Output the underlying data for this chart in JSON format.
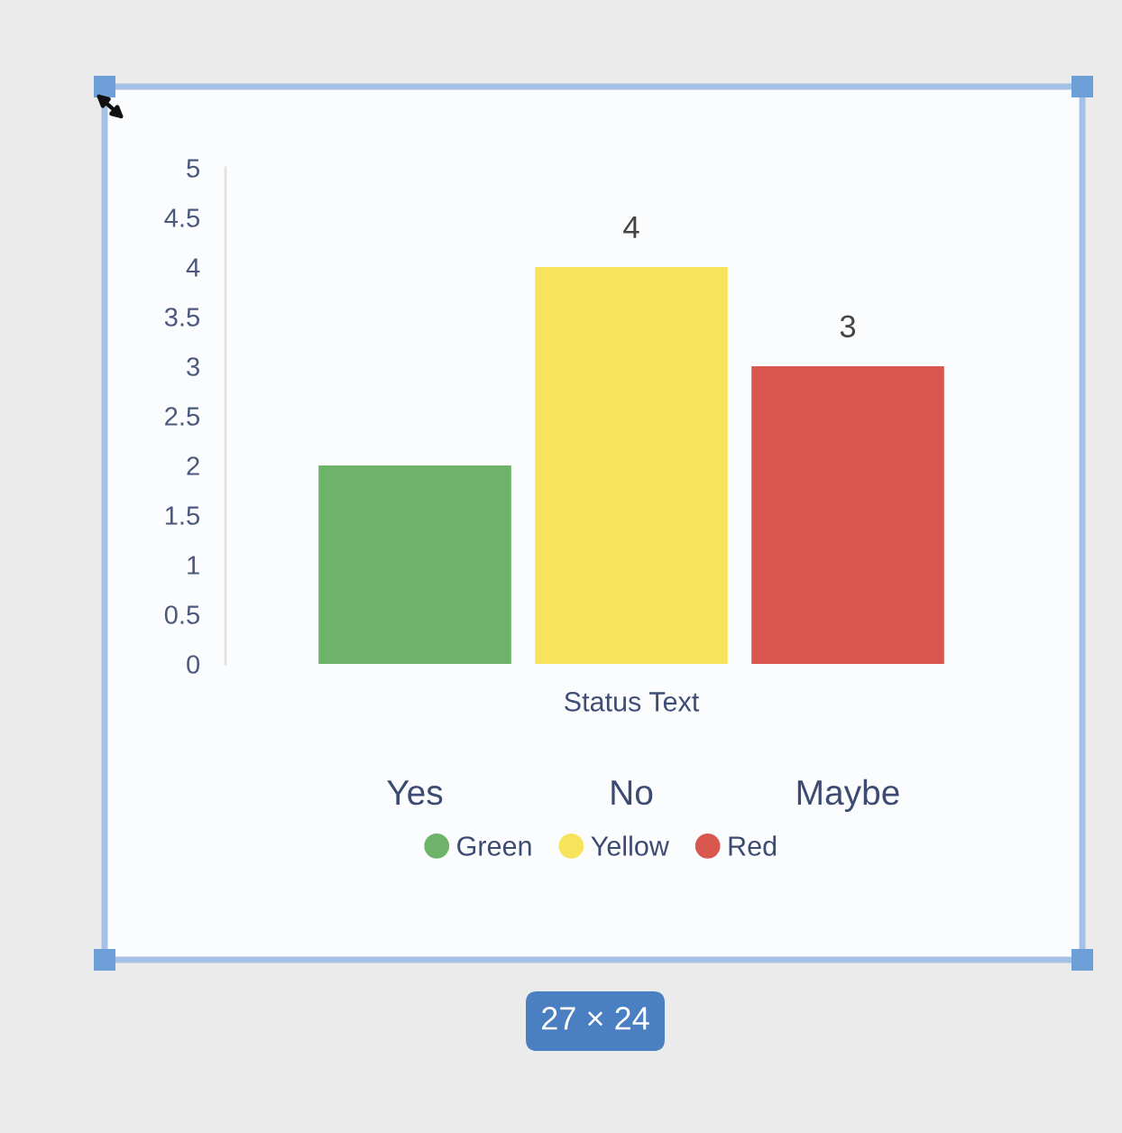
{
  "chart_data": {
    "type": "bar",
    "xlabel": "Status Text",
    "categories": [
      "Yes",
      "No",
      "Maybe"
    ],
    "stacked": true,
    "series": [
      {
        "name": "Green",
        "color": "#6db36a",
        "values": [
          2,
          null,
          null
        ]
      },
      {
        "name": "Yellow",
        "color": "#f8e45c",
        "values": [
          null,
          4,
          null
        ],
        "value_labels": [
          null,
          "4",
          null
        ]
      },
      {
        "name": "Red",
        "color": "#d9574f",
        "values": [
          null,
          null,
          3
        ],
        "value_labels": [
          null,
          null,
          "3"
        ]
      }
    ],
    "ylim": [
      0,
      5
    ],
    "yticks": [
      0,
      0.5,
      1,
      1.5,
      2,
      2.5,
      3,
      3.5,
      4,
      4.5,
      5
    ],
    "grid": false,
    "legend": "bottom",
    "annotations": [
      "27 × 24"
    ]
  }
}
